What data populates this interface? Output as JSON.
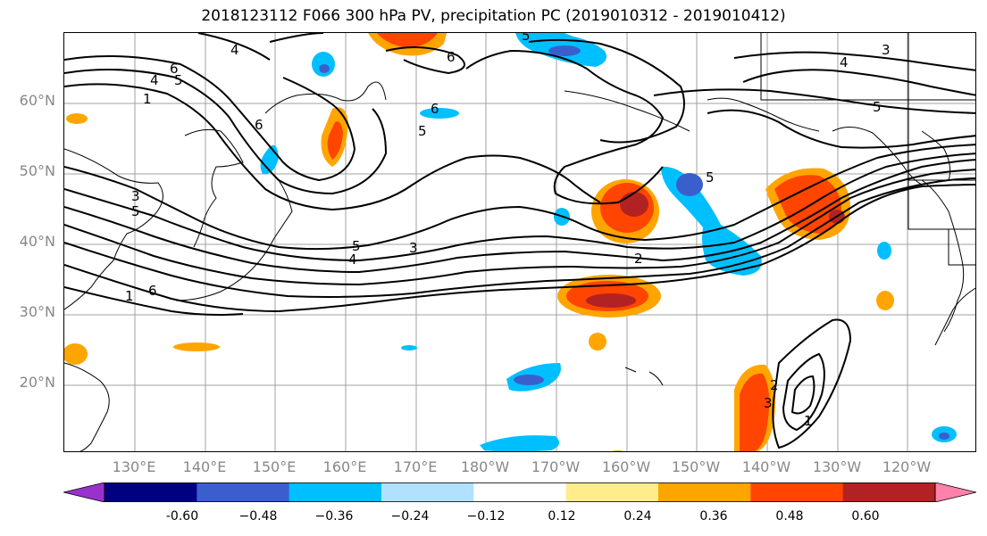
{
  "title": "2018123112 F066 300 hPa PV, precipitation PC (2019010312 - 2019010412)",
  "lat_labels": [
    "60°N",
    "50°N",
    "40°N",
    "30°N",
    "20°N"
  ],
  "lon_labels": [
    "130°E",
    "140°E",
    "150°E",
    "160°E",
    "170°E",
    "180°W",
    "170°W",
    "160°W",
    "150°W",
    "140°W",
    "130°W",
    "120°W"
  ],
  "colorbar": {
    "ticks": [
      "-0.60",
      "−0.48",
      "−0.36",
      "−0.24",
      "−0.12",
      "0.12",
      "0.24",
      "0.36",
      "0.48",
      "0.60"
    ],
    "colors": [
      "#9932cc",
      "#000080",
      "#3a5fcd",
      "#00bfff",
      "#b0e2ff",
      "#ffffff",
      "#ffec8b",
      "#ffa500",
      "#ff4500",
      "#b22222",
      "#ff82ab"
    ]
  },
  "pv_contour_labels": [
    "1",
    "2",
    "3",
    "4",
    "5",
    "6"
  ],
  "colors": {
    "contour": "#000000",
    "grid": "#a0a0a0",
    "coast": "#000000",
    "axis_label": "#888888"
  }
}
